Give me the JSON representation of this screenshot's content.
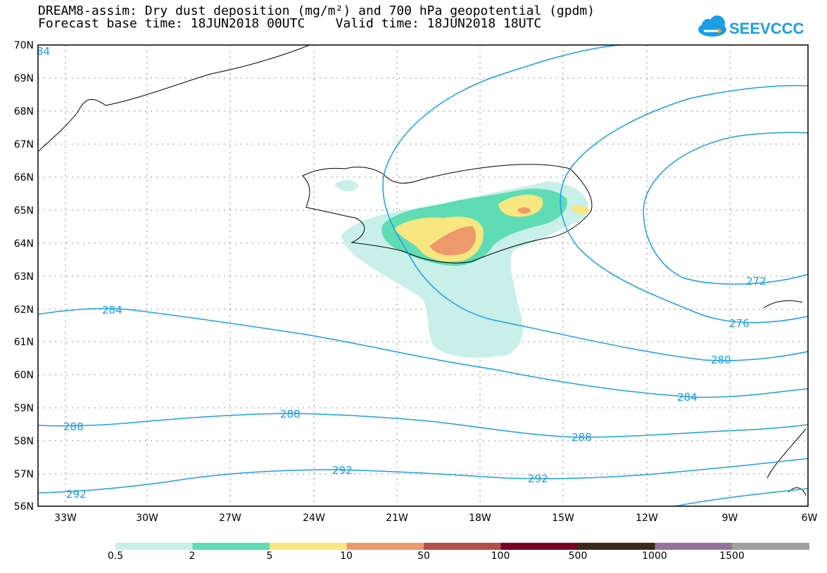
{
  "title": {
    "line1": "DREAM8-assim: Dry dust deposition (mg/m²) and 700 hPa geopotential (gpdm)",
    "line2": "Forecast base time: 18JUN2018 00UTC    Valid time: 18JUN2018 18UTC"
  },
  "logo": {
    "text": "SEEVCCC",
    "icon": "cloud-icon"
  },
  "axes": {
    "lat_labels": [
      "70N",
      "69N",
      "68N",
      "67N",
      "66N",
      "65N",
      "64N",
      "63N",
      "62N",
      "61N",
      "60N",
      "59N",
      "58N",
      "57N",
      "56N"
    ],
    "lon_labels": [
      "33W",
      "30W",
      "27W",
      "24W",
      "21W",
      "18W",
      "15W",
      "12W",
      "9W",
      "6W"
    ]
  },
  "contour_labels": [
    "84",
    "284",
    "288",
    "288",
    "288",
    "292",
    "292",
    "292",
    "284",
    "280",
    "276",
    "272"
  ],
  "legend": {
    "labels": [
      "0.5",
      "2",
      "5",
      "10",
      "50",
      "100",
      "500",
      "1000",
      "1500"
    ],
    "colors": [
      "#c8f0e8",
      "#5fdcb4",
      "#f8e680",
      "#ec9a6c",
      "#b05048",
      "#780020",
      "#3c2814",
      "#96729e",
      "#a0a0a0"
    ]
  },
  "chart_data": {
    "type": "heatmap",
    "variable": "Dry dust deposition (mg/m²)",
    "overlay": "700 hPa geopotential (gpdm)",
    "lat_range": [
      56,
      70
    ],
    "lon_range": [
      -34,
      -6
    ],
    "contour_levels": [
      272,
      276,
      280,
      284,
      288,
      292
    ],
    "deposition_levels": [
      0.5,
      2,
      5,
      10,
      50,
      100,
      500,
      1000,
      1500
    ]
  }
}
